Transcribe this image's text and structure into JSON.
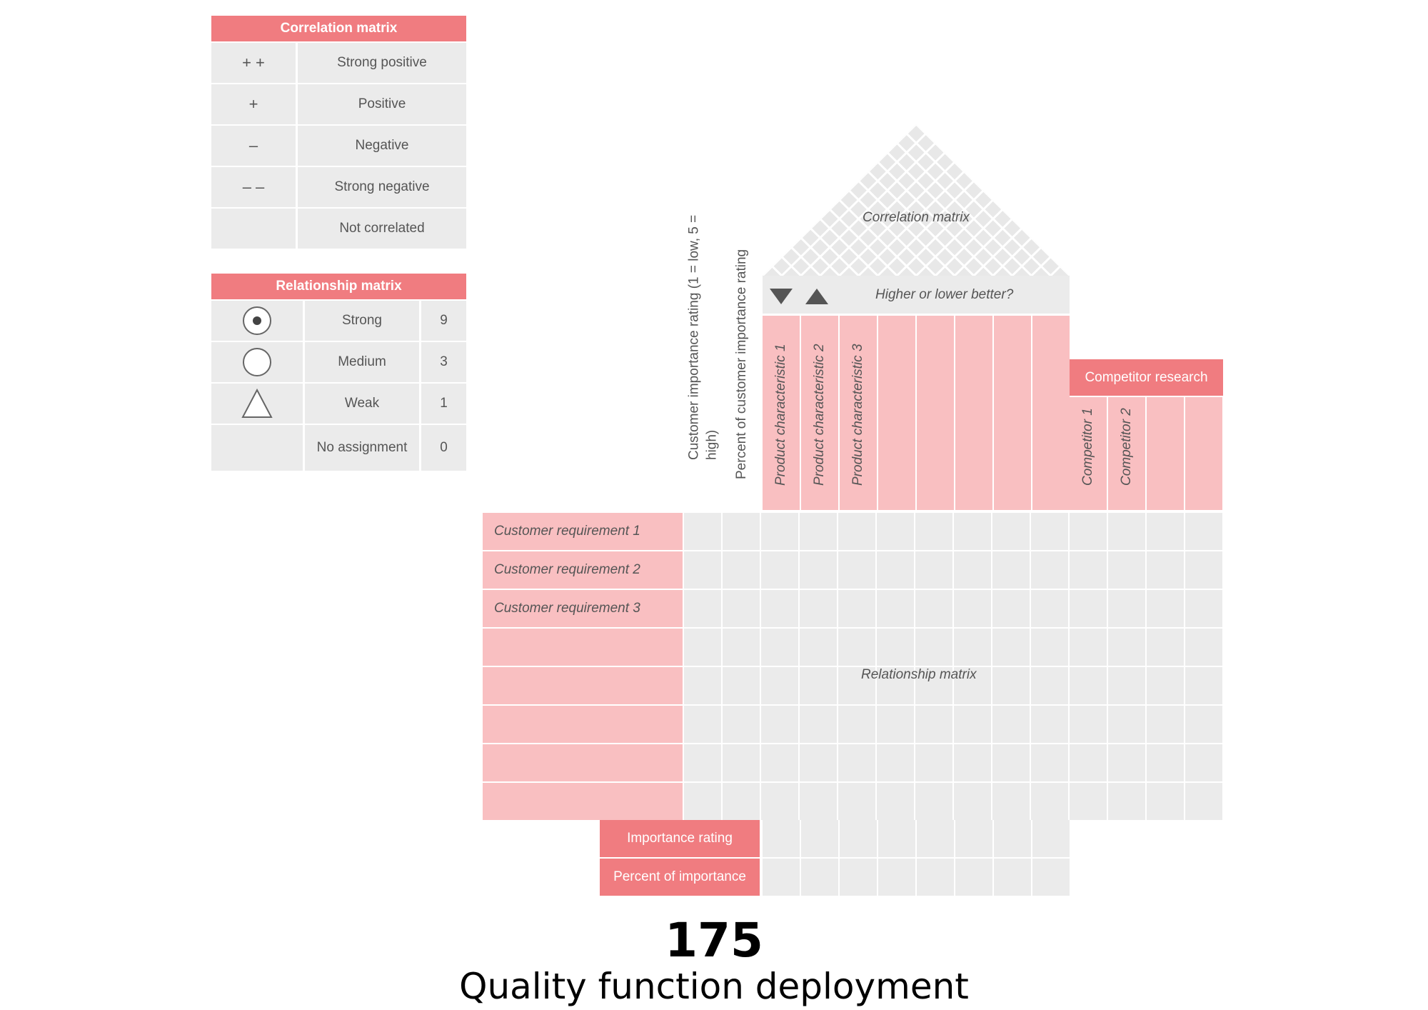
{
  "legend_correlation": {
    "title": "Correlation matrix",
    "rows": [
      {
        "symbol": "+ +",
        "label": "Strong positive"
      },
      {
        "symbol": "+",
        "label": "Positive"
      },
      {
        "symbol": "–",
        "label": "Negative"
      },
      {
        "symbol": "– –",
        "label": "Strong negative"
      },
      {
        "symbol": "",
        "label": "Not correlated"
      }
    ]
  },
  "legend_relationship": {
    "title": "Relationship matrix",
    "rows": [
      {
        "icon": "dot-circle-icon",
        "label": "Strong",
        "value": "9"
      },
      {
        "icon": "circle-icon",
        "label": "Medium",
        "value": "3"
      },
      {
        "icon": "triangle-icon",
        "label": "Weak",
        "value": "1"
      },
      {
        "icon": "",
        "label": "No assignment",
        "value": "0"
      }
    ]
  },
  "house": {
    "roof_label": "Correlation matrix",
    "direction_label": "Higher or lower better?",
    "importance_col_label": "Customer importance  rating (1 = low, 5 = high)",
    "percent_col_label": "Percent of customer importance rating",
    "product_characteristics": [
      "Product characteristic 1",
      "Product characteristic 2",
      "Product characteristic 3",
      "",
      "",
      "",
      "",
      ""
    ],
    "competitor_title": "Competitor research",
    "competitors": [
      "Competitor 1",
      "Competitor 2",
      "",
      ""
    ],
    "customer_requirements": [
      "Customer requirement 1",
      "Customer requirement 2",
      "Customer requirement 3",
      "",
      "",
      "",
      "",
      ""
    ],
    "relationship_label": "Relationship matrix",
    "importance_rating_label": "Importance rating",
    "percent_importance_label": "Percent of importance"
  },
  "footer": {
    "number": "175",
    "title": "Quality function deployment"
  },
  "colors": {
    "accent": "#f07c80",
    "pink": "#f9bfc1",
    "grey": "#ebebeb"
  }
}
